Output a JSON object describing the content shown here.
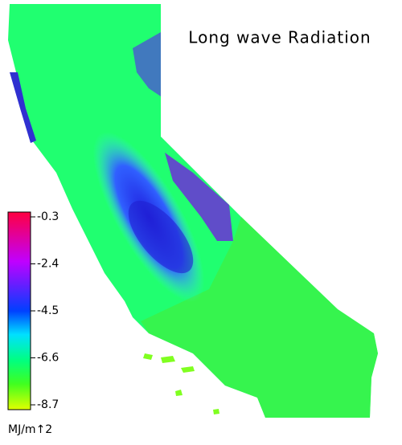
{
  "title": "Long wave Radiation",
  "colorbar": {
    "lim": [
      -8.7,
      -0.3
    ],
    "ticks": [
      -0.3,
      -2.4,
      -4.5,
      -6.6,
      -8.7
    ],
    "unit": "MJ/m↑2"
  }
}
